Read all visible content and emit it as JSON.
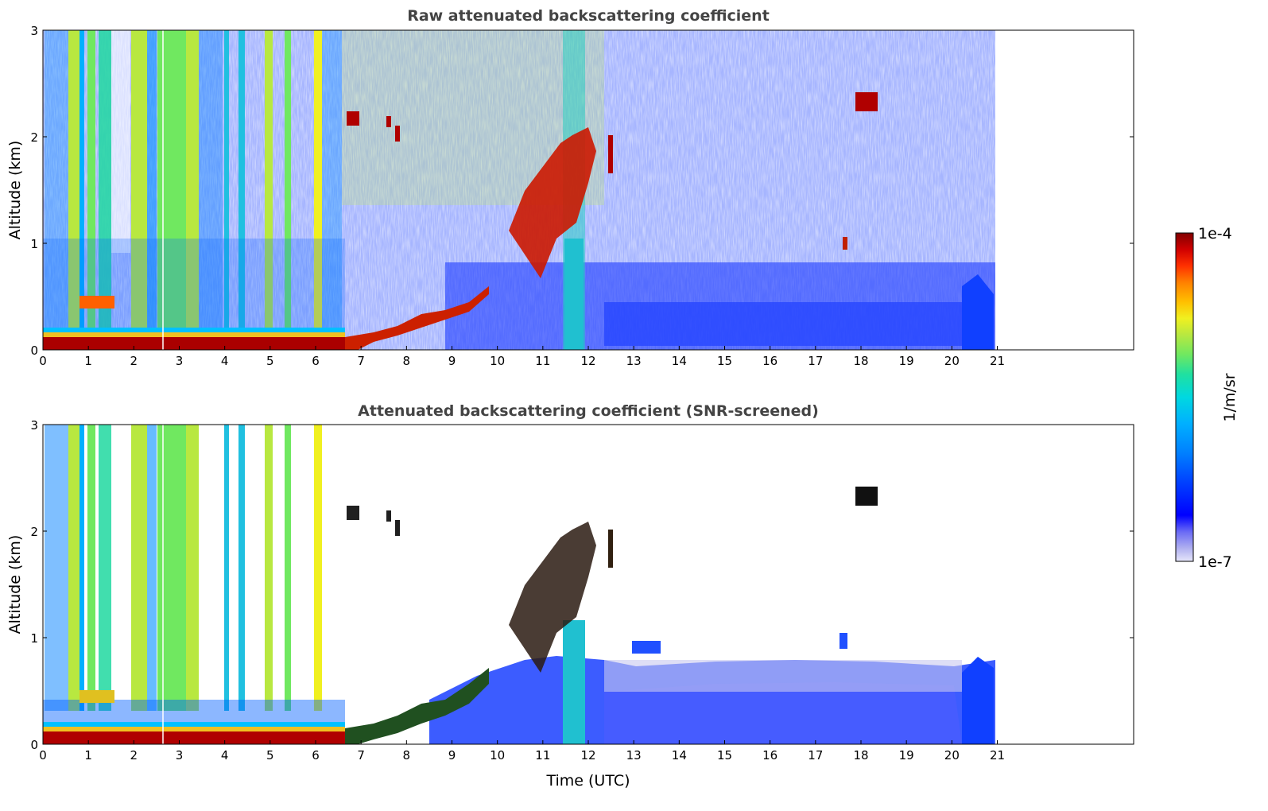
{
  "chart_data": [
    {
      "type": "heatmap",
      "title": "Raw attenuated backscattering coefficient",
      "xlabel": "",
      "ylabel": "Altitude (km)",
      "xlim": [
        0,
        24
      ],
      "ylim": [
        0,
        3
      ],
      "data_extent_x": [
        0,
        21
      ],
      "xticks": [
        0,
        1,
        2,
        3,
        4,
        5,
        6,
        7,
        8,
        9,
        10,
        11,
        12,
        13,
        14,
        15,
        16,
        17,
        18,
        19,
        20,
        21
      ],
      "yticks": [
        0,
        1,
        2,
        3
      ],
      "features": [
        {
          "name": "surface layer",
          "x": [
            0,
            6.6
          ],
          "y": [
            0,
            0.12
          ],
          "level": "very high"
        },
        {
          "name": "rising boundary layer top",
          "x": [
            6.6,
            9.8
          ],
          "y": [
            0.05,
            0.6
          ],
          "level": "high"
        },
        {
          "name": "cloud patch",
          "x": [
            6.8,
            7.0
          ],
          "y": [
            2.1,
            2.2
          ],
          "level": "very high"
        },
        {
          "name": "cloud patch",
          "x": [
            10.2,
            12.6
          ],
          "y": [
            0.7,
            2.0
          ],
          "level": "very high"
        },
        {
          "name": "cloud patch",
          "x": [
            17.9,
            18.4
          ],
          "y": [
            2.2,
            2.4
          ],
          "level": "very high"
        },
        {
          "name": "low layer",
          "x": [
            0.8,
            1.6
          ],
          "y": [
            0.4,
            0.5
          ],
          "level": "high"
        },
        {
          "name": "precipitation column",
          "x": [
            11.5,
            11.9
          ],
          "y": [
            0,
            3
          ],
          "level": "moderate"
        }
      ]
    },
    {
      "type": "heatmap",
      "title": "Attenuated backscattering coefficient (SNR-screened)",
      "xlabel": "Time (UTC)",
      "ylabel": "Altitude (km)",
      "xlim": [
        0,
        24
      ],
      "ylim": [
        0,
        3
      ],
      "data_extent_x": [
        0,
        21
      ],
      "xticks": [
        0,
        1,
        2,
        3,
        4,
        5,
        6,
        7,
        8,
        9,
        10,
        11,
        12,
        13,
        14,
        15,
        16,
        17,
        18,
        19,
        20,
        21
      ],
      "yticks": [
        0,
        1,
        2,
        3
      ],
      "features": [
        {
          "name": "surface layer",
          "x": [
            0,
            6.6
          ],
          "y": [
            0,
            0.12
          ],
          "level": "very high"
        },
        {
          "name": "rising boundary layer top",
          "x": [
            6.6,
            9.8
          ],
          "y": [
            0.05,
            0.6
          ],
          "level": "high"
        },
        {
          "name": "cloud patch",
          "x": [
            10.2,
            12.6
          ],
          "y": [
            0.7,
            2.0
          ],
          "level": "very high"
        },
        {
          "name": "cloud patch",
          "x": [
            17.9,
            18.4
          ],
          "y": [
            2.2,
            2.4
          ],
          "level": "very high"
        },
        {
          "name": "aerosol layer",
          "x": [
            9,
            21
          ],
          "y": [
            0,
            0.8
          ],
          "level": "low"
        }
      ]
    }
  ],
  "colorbar": {
    "label": "1/m/sr",
    "max_label": "1e-4",
    "min_label": "1e-7",
    "scale": "log",
    "colors": [
      "#e6e6fa",
      "#b0b0f0",
      "#6a6af5",
      "#0000ff",
      "#0040ff",
      "#0080ff",
      "#00b0ff",
      "#00d8e0",
      "#20e0a0",
      "#70e860",
      "#b8e840",
      "#f0f020",
      "#ffc000",
      "#ff8000",
      "#ff3000",
      "#d00000",
      "#800000"
    ]
  }
}
